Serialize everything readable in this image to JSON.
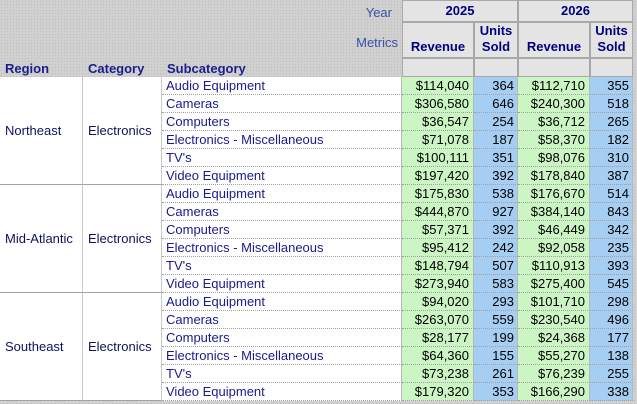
{
  "header": {
    "year_label": "Year",
    "metrics_label": "Metrics",
    "years": [
      "2025",
      "2026"
    ],
    "metrics": [
      "Revenue",
      "Units Sold"
    ],
    "columns": [
      "Region",
      "Category",
      "Subcategory"
    ]
  },
  "rows": [
    {
      "region": "Northeast",
      "category": "Electronics",
      "items": [
        [
          "Audio Equipment",
          "$114,040",
          "364",
          "$112,710",
          "355"
        ],
        [
          "Cameras",
          "$306,580",
          "646",
          "$240,300",
          "518"
        ],
        [
          "Computers",
          "$36,547",
          "254",
          "$36,712",
          "265"
        ],
        [
          "Electronics - Miscellaneous",
          "$71,078",
          "187",
          "$58,370",
          "182"
        ],
        [
          "TV's",
          "$100,111",
          "351",
          "$98,076",
          "310"
        ],
        [
          "Video Equipment",
          "$197,420",
          "392",
          "$178,840",
          "387"
        ]
      ]
    },
    {
      "region": "Mid-Atlantic",
      "category": "Electronics",
      "items": [
        [
          "Audio Equipment",
          "$175,830",
          "538",
          "$176,670",
          "514"
        ],
        [
          "Cameras",
          "$444,870",
          "927",
          "$384,140",
          "843"
        ],
        [
          "Computers",
          "$57,371",
          "392",
          "$46,449",
          "342"
        ],
        [
          "Electronics - Miscellaneous",
          "$95,412",
          "242",
          "$92,058",
          "235"
        ],
        [
          "TV's",
          "$148,794",
          "507",
          "$110,913",
          "393"
        ],
        [
          "Video Equipment",
          "$273,940",
          "583",
          "$275,400",
          "545"
        ]
      ]
    },
    {
      "region": "Southeast",
      "category": "Electronics",
      "items": [
        [
          "Audio Equipment",
          "$94,020",
          "293",
          "$101,710",
          "298"
        ],
        [
          "Cameras",
          "$263,070",
          "559",
          "$230,540",
          "496"
        ],
        [
          "Computers",
          "$28,177",
          "199",
          "$24,368",
          "177"
        ],
        [
          "Electronics - Miscellaneous",
          "$64,360",
          "155",
          "$55,270",
          "138"
        ],
        [
          "TV's",
          "$73,238",
          "261",
          "$76,239",
          "255"
        ],
        [
          "Video Equipment",
          "$179,320",
          "353",
          "$166,290",
          "338"
        ]
      ]
    }
  ]
}
